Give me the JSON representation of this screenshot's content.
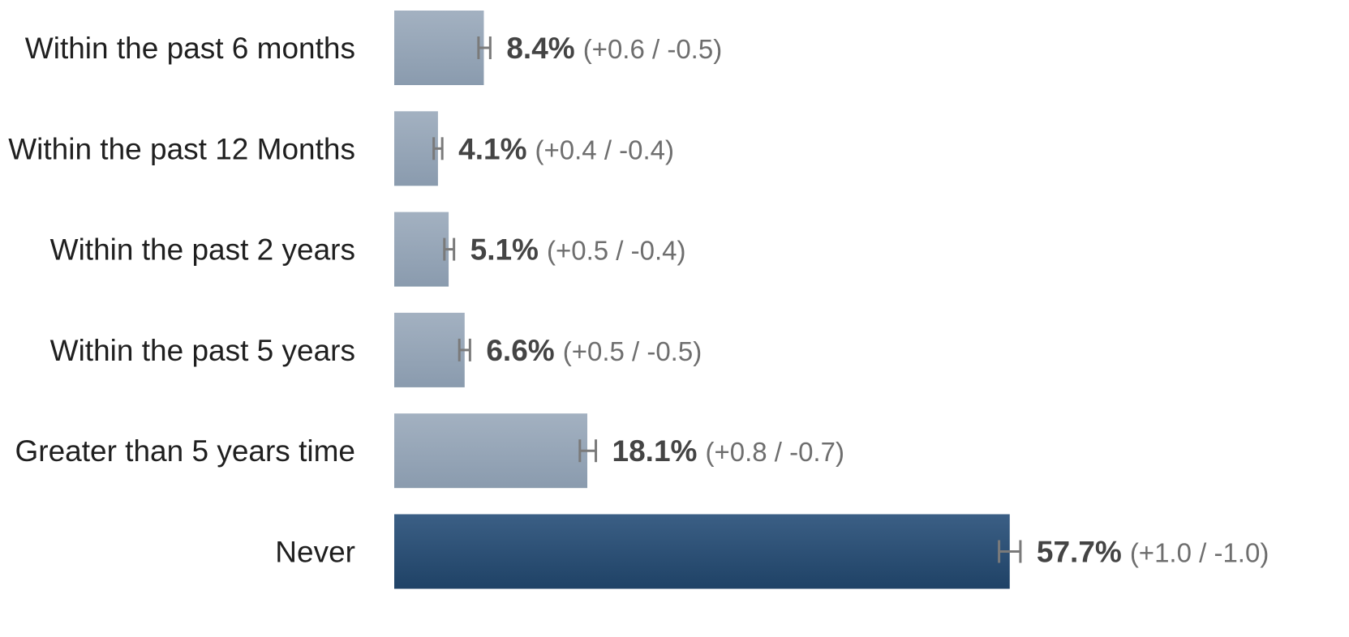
{
  "chart_data": {
    "type": "bar",
    "orientation": "horizontal",
    "categories": [
      "Within the past 6 months",
      "Within the past 12 Months",
      "Within the past 2 years",
      "Within the past 5 years",
      "Greater than 5 years time",
      "Never"
    ],
    "values": [
      8.4,
      4.1,
      5.1,
      6.6,
      18.1,
      57.7
    ],
    "value_labels": [
      "8.4%",
      "4.1%",
      "5.1%",
      "6.6%",
      "18.1%",
      "57.7%"
    ],
    "error_plus": [
      0.6,
      0.4,
      0.5,
      0.5,
      0.8,
      1.0
    ],
    "error_minus": [
      0.5,
      0.4,
      0.4,
      0.5,
      0.7,
      1.0
    ],
    "error_labels": [
      "(+0.6 / -0.5)",
      "(+0.4 / -0.4)",
      "(+0.5 / -0.4)",
      "(+0.5 / -0.5)",
      "(+0.8 / -0.7)",
      "(+1.0 / -1.0)"
    ],
    "highlight_index": 5,
    "colors": {
      "bar_top": "#a3b1c1",
      "bar_bottom": "#8a9bae",
      "highlight_top": "#3b5f85",
      "highlight_bottom": "#1f4266",
      "error_bar": "#7a7a7a",
      "category_text": "#1f1f1f",
      "value_text": "#444444",
      "error_text": "#6e6e6e"
    },
    "xlim": [
      0,
      100
    ],
    "grid": false,
    "legend": "none"
  }
}
